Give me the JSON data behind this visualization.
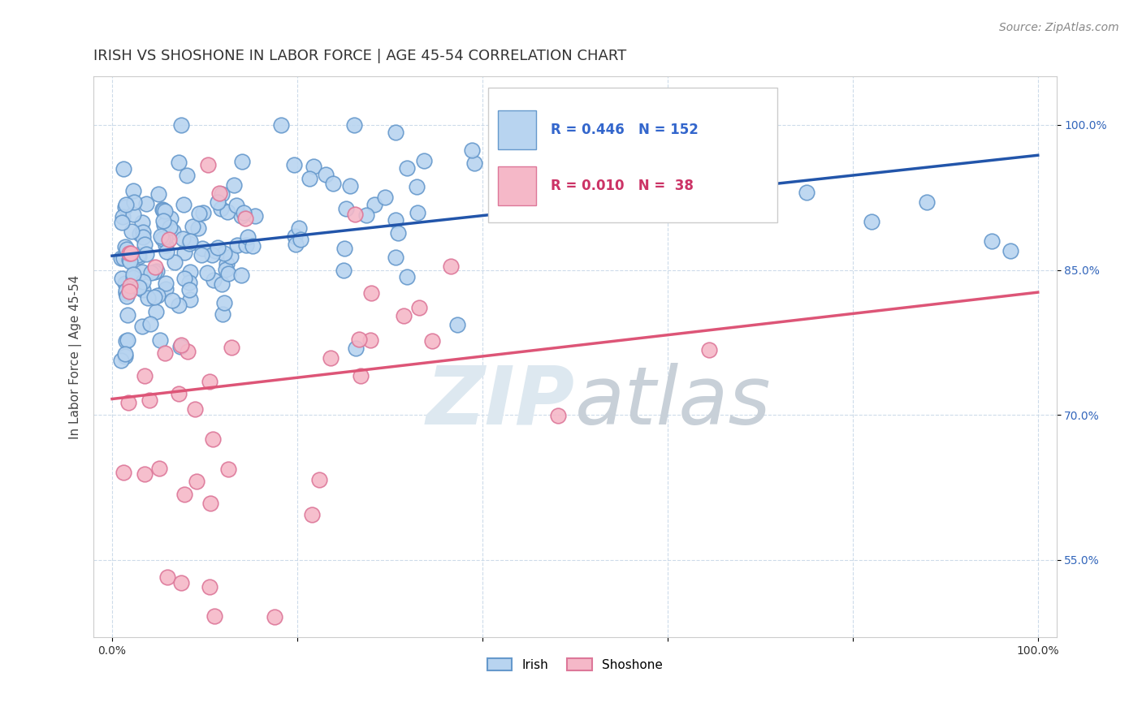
{
  "title": "IRISH VS SHOSHONE IN LABOR FORCE | AGE 45-54 CORRELATION CHART",
  "source_text": "Source: ZipAtlas.com",
  "ylabel": "In Labor Force | Age 45-54",
  "xlim": [
    -0.02,
    1.02
  ],
  "ylim": [
    0.47,
    1.05
  ],
  "y_ticks": [
    0.55,
    0.7,
    0.85,
    1.0
  ],
  "y_tick_labels": [
    "55.0%",
    "70.0%",
    "85.0%",
    "100.0%"
  ],
  "irish_R": 0.446,
  "irish_N": 152,
  "shoshone_R": 0.01,
  "shoshone_N": 38,
  "irish_color": "#b8d4f0",
  "irish_edge_color": "#6699cc",
  "shoshone_color": "#f5b8c8",
  "shoshone_edge_color": "#dd7799",
  "irish_line_color": "#2255aa",
  "shoshone_line_color": "#dd5577",
  "watermark_color": "#dde8f0",
  "background_color": "#ffffff",
  "title_fontsize": 13,
  "axis_label_fontsize": 11,
  "tick_fontsize": 10,
  "legend_fontsize": 12,
  "source_fontsize": 10
}
